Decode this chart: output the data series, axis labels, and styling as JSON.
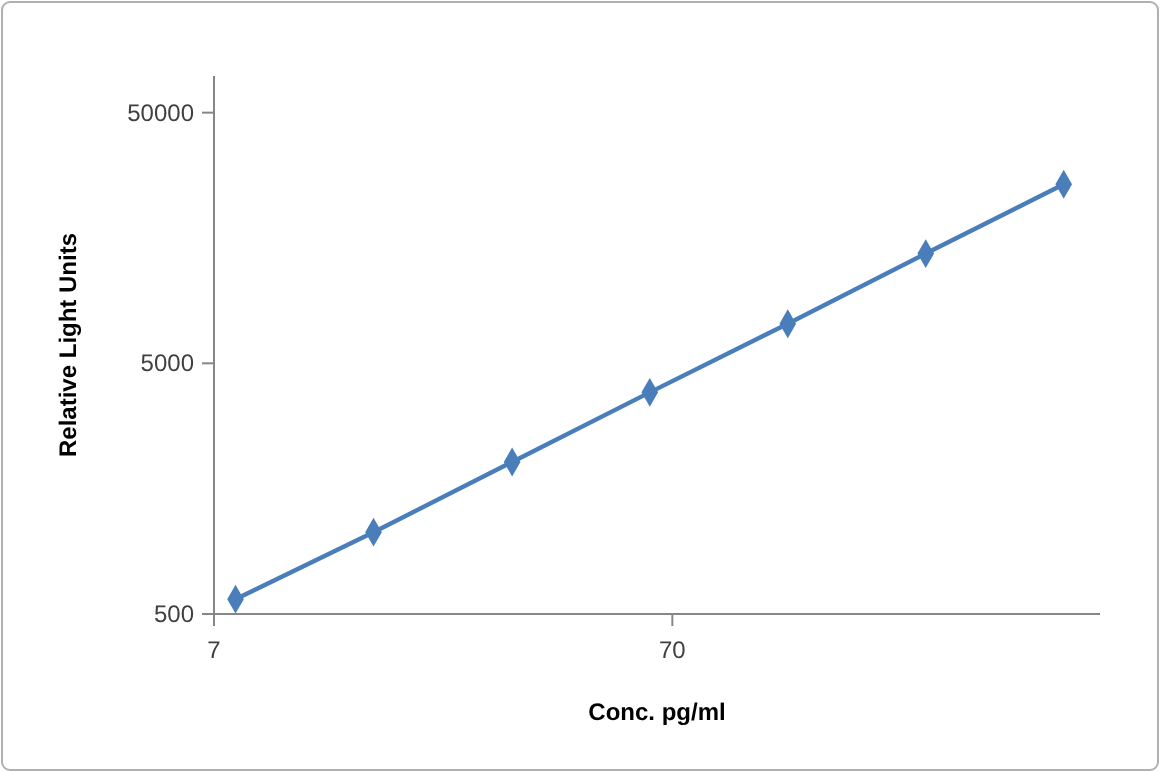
{
  "chart_data": {
    "type": "line",
    "xlabel": "Conc. pg/ml",
    "ylabel": "Relative Light Units",
    "log": "xy",
    "x": [
      7.8,
      15.6,
      31.3,
      62.5,
      125,
      250,
      500
    ],
    "series": [
      {
        "color": "#4a7ebb",
        "values": [
          573,
          1060,
          2020,
          3830,
          7190,
          13700,
          25900
        ]
      }
    ],
    "xlim": [
      7,
      600
    ],
    "xticks": [
      7,
      70
    ],
    "ylim": [
      500,
      70000
    ],
    "yticks": [
      500,
      5000,
      50000
    ],
    "marker": "diamond",
    "line_style": "solid",
    "grid": false
  }
}
